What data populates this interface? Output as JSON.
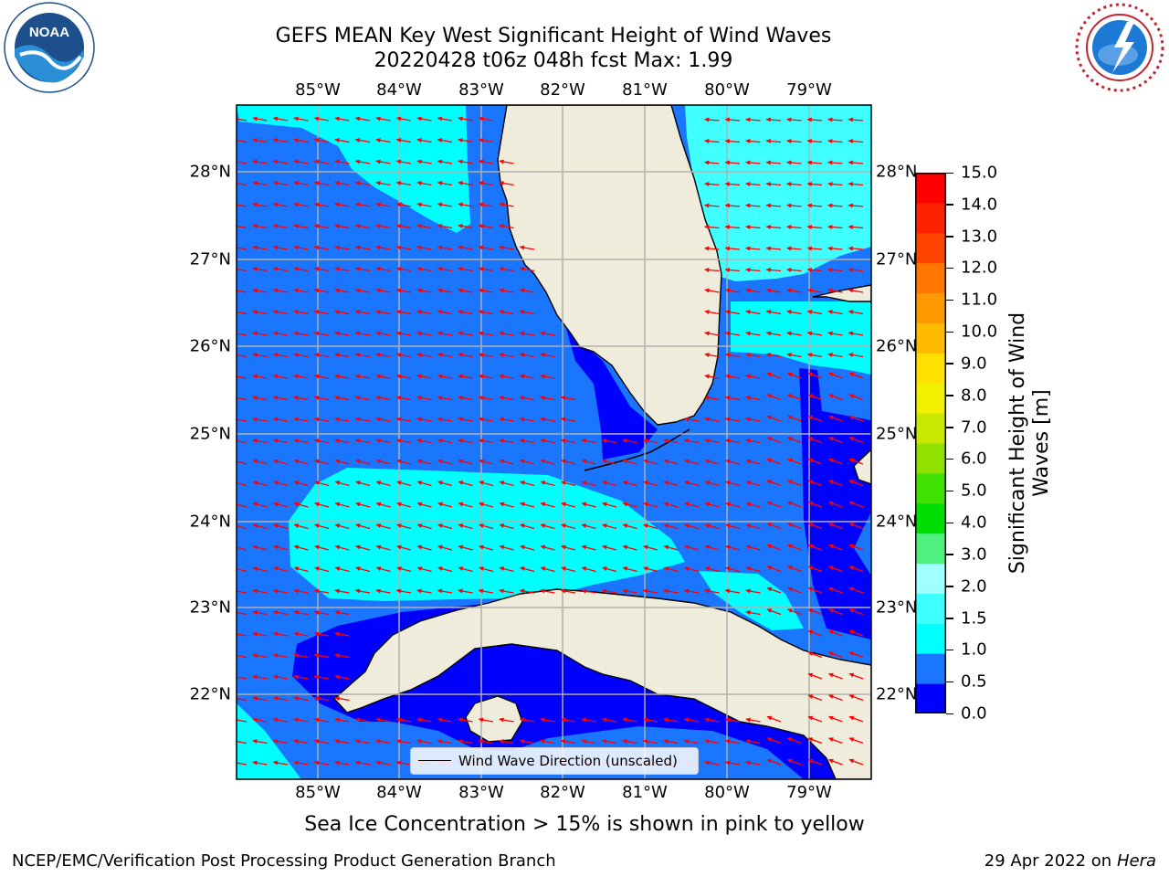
{
  "title": {
    "line1": "GEFS MEAN Key West Significant Height of Wind Waves",
    "line2": "20220428 t06z 048h fcst   Max: 1.99"
  },
  "logos": {
    "left": {
      "name": "noaa-logo",
      "text": "NOAA"
    },
    "right": {
      "name": "nws-logo",
      "text": "NATIONAL WEATHER SERVICE"
    }
  },
  "map": {
    "lon_labels": [
      "85°W",
      "84°W",
      "83°W",
      "82°W",
      "81°W",
      "80°W",
      "79°W"
    ],
    "lat_labels": [
      "28°N",
      "27°N",
      "26°N",
      "25°N",
      "24°N",
      "23°N",
      "22°N"
    ],
    "ocean_color": "#1a75ff",
    "land_color": "#efecdc",
    "arrow_color": "#ff0000",
    "grid_color": "#b0b0b0"
  },
  "legend": {
    "label": "Wind Wave Direction (unscaled)"
  },
  "colorbar": {
    "label_line1": "Significant Height of Wind",
    "label_line2": "Waves [m]",
    "ticks": [
      "15.0",
      "14.0",
      "13.0",
      "12.0",
      "11.0",
      "10.0",
      "9.0",
      "8.0",
      "7.0",
      "6.0",
      "5.0",
      "4.0",
      "3.0",
      "2.0",
      "1.5",
      "1.0",
      "0.5",
      "0.0"
    ],
    "colors": [
      "#0000ff",
      "#1a75ff",
      "#00ffff",
      "#40ffff",
      "#a0ffff",
      "#50f080",
      "#00dd00",
      "#40e000",
      "#90e000",
      "#c8e800",
      "#f0f000",
      "#ffe000",
      "#ffbb00",
      "#ff9900",
      "#ff7700",
      "#ff4400",
      "#ff2200",
      "#ff0000"
    ]
  },
  "ice_note": "Sea Ice Concentration > 15% is shown in pink to yellow",
  "footer": {
    "left": "NCEP/EMC/Verification Post Processing Product Generation Branch",
    "right_date": "29 Apr 2022 on ",
    "right_host": "Hera"
  }
}
